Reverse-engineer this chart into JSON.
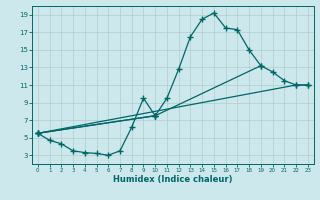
{
  "xlabel": "Humidex (Indice chaleur)",
  "bg_color": "#cde8ec",
  "grid_color": "#b0cccc",
  "line_color": "#006666",
  "xlim": [
    -0.5,
    23.5
  ],
  "ylim": [
    2.0,
    20.0
  ],
  "xticks": [
    0,
    1,
    2,
    3,
    4,
    5,
    6,
    7,
    8,
    9,
    10,
    11,
    12,
    13,
    14,
    15,
    16,
    17,
    18,
    19,
    20,
    21,
    22,
    23
  ],
  "yticks": [
    3,
    5,
    7,
    9,
    11,
    13,
    15,
    17,
    19
  ],
  "curve1_x": [
    0,
    1,
    2,
    3,
    4,
    5,
    6,
    7,
    8,
    9,
    10
  ],
  "curve1_y": [
    5.5,
    4.7,
    4.3,
    3.5,
    3.3,
    3.2,
    3.0,
    3.5,
    6.2,
    9.5,
    7.5
  ],
  "curve2_x": [
    0,
    10,
    11,
    12,
    13,
    14,
    15,
    16,
    17,
    18,
    19
  ],
  "curve2_y": [
    5.5,
    7.5,
    9.5,
    12.8,
    16.5,
    18.5,
    19.2,
    17.5,
    17.3,
    15.0,
    13.2
  ],
  "curve3_x": [
    0,
    10,
    19,
    20,
    21,
    22,
    23
  ],
  "curve3_y": [
    5.5,
    7.5,
    13.2,
    12.5,
    11.5,
    11.0,
    11.0
  ],
  "curve4_x": [
    0,
    22,
    23
  ],
  "curve4_y": [
    5.5,
    11.0,
    11.0
  ]
}
